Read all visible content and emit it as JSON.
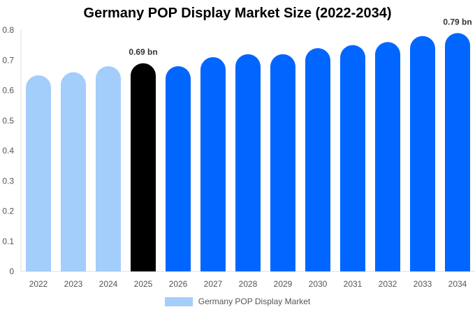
{
  "chart_data": {
    "type": "bar",
    "title": "Germany POP Display Market Size (2022-2034)",
    "categories": [
      "2022",
      "2023",
      "2024",
      "2025",
      "2026",
      "2027",
      "2028",
      "2029",
      "2030",
      "2031",
      "2032",
      "2033",
      "2034"
    ],
    "values": [
      0.65,
      0.66,
      0.68,
      0.69,
      0.68,
      0.71,
      0.72,
      0.72,
      0.74,
      0.75,
      0.76,
      0.78,
      0.79
    ],
    "ylim": [
      0,
      0.8
    ],
    "yticks": [
      "0",
      "0.1",
      "0.2",
      "0.3",
      "0.4",
      "0.5",
      "0.6",
      "0.7",
      "0.8"
    ],
    "ytick_values": [
      0,
      0.1,
      0.2,
      0.3,
      0.4,
      0.5,
      0.6,
      0.7,
      0.8
    ],
    "xlabel": "",
    "ylabel": "",
    "grid": false,
    "legend": {
      "placement": "bottom",
      "entries": [
        {
          "name": "Germany POP Display Market",
          "color": "#a3cdfb"
        }
      ]
    },
    "colors": {
      "historical": "#a3cdfb",
      "current": "#000000",
      "forecast": "#0066ff"
    },
    "bar_roles": [
      "historical",
      "historical",
      "historical",
      "current",
      "forecast",
      "forecast",
      "forecast",
      "forecast",
      "forecast",
      "forecast",
      "forecast",
      "forecast",
      "forecast"
    ],
    "annotations": [
      {
        "category": "2025",
        "text": "0.69 bn"
      },
      {
        "category": "2034",
        "text": "0.79 bn"
      }
    ]
  }
}
